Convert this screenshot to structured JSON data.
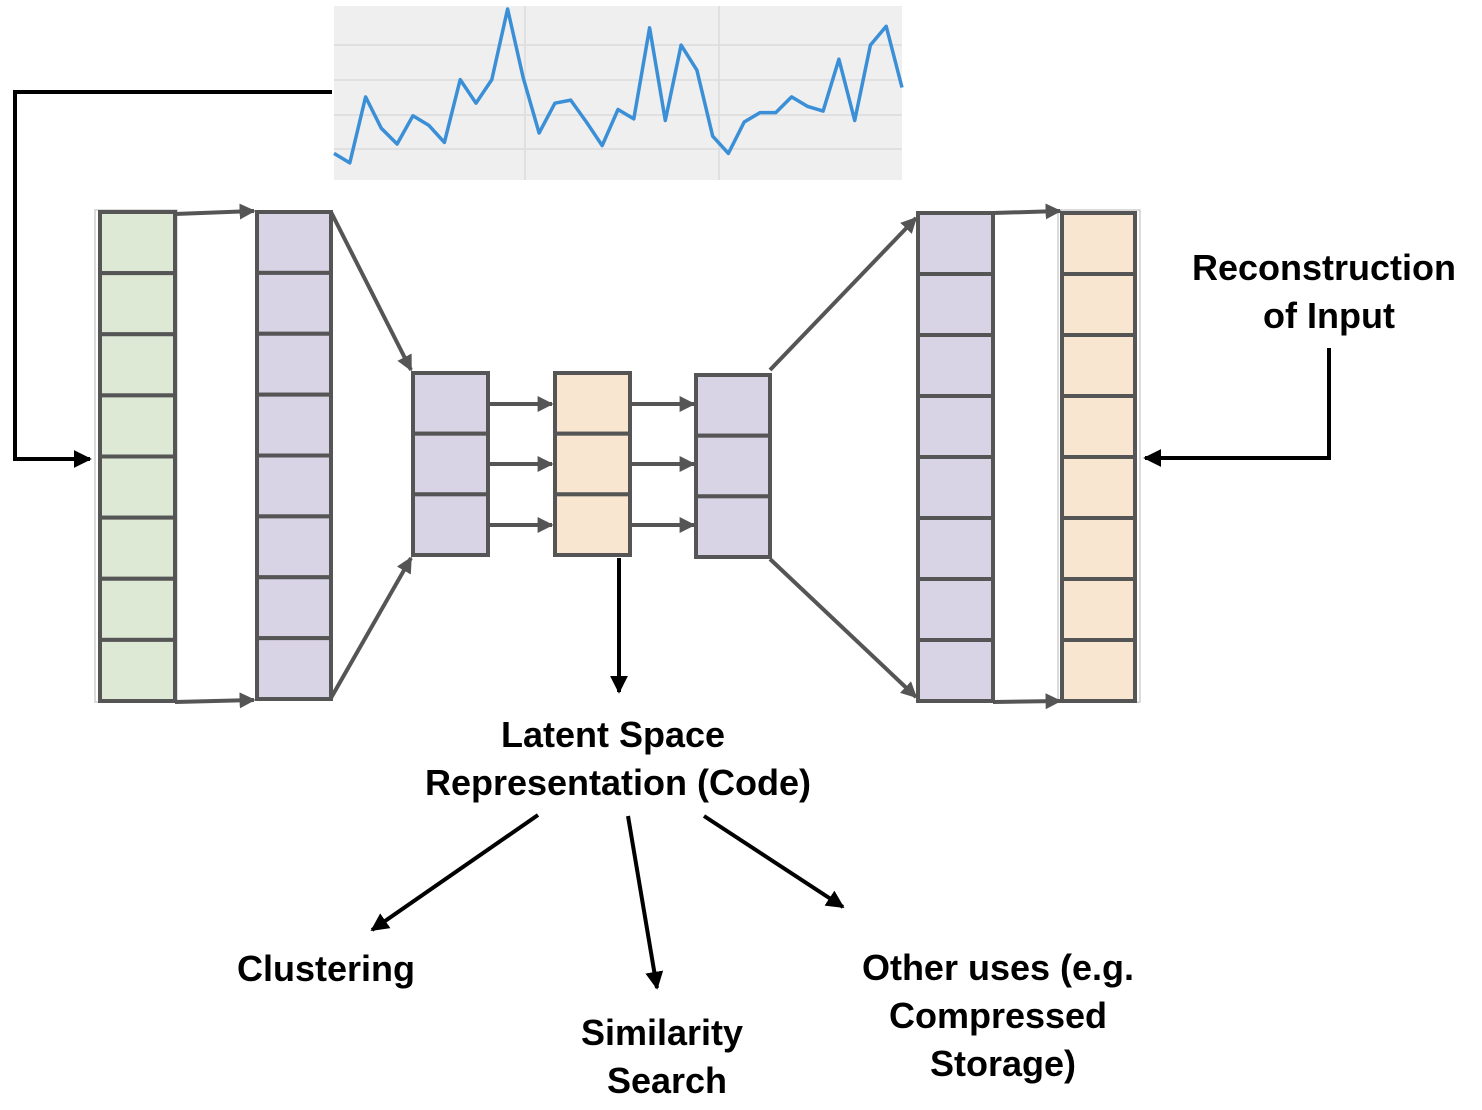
{
  "labels": {
    "reconstruction": [
      "Reconstruction",
      "of Input"
    ],
    "latent": [
      "Latent Space",
      "Representation (Code)"
    ],
    "clustering": [
      "Clustering"
    ],
    "similarity": [
      "Similarity",
      "Search"
    ],
    "other_uses": [
      "Other uses (e.g.",
      "Compressed",
      "Storage)"
    ]
  },
  "signal": {
    "values": [
      0.08,
      0.02,
      0.44,
      0.24,
      0.14,
      0.32,
      0.26,
      0.15,
      0.55,
      0.4,
      0.55,
      1.0,
      0.56,
      0.21,
      0.4,
      0.42,
      0.28,
      0.13,
      0.36,
      0.3,
      0.88,
      0.29,
      0.77,
      0.61,
      0.19,
      0.08,
      0.28,
      0.34,
      0.34,
      0.44,
      0.38,
      0.35,
      0.68,
      0.29,
      0.77,
      0.89,
      0.5
    ]
  },
  "layers": [
    {
      "name": "input-layer",
      "cells": 8,
      "fill": "#dde9d5"
    },
    {
      "name": "encoder-hidden-layer",
      "cells": 8,
      "fill": "#d9d3e6"
    },
    {
      "name": "encoder-bottleneck-layer",
      "cells": 3,
      "fill": "#d9d3e6"
    },
    {
      "name": "code-layer",
      "cells": 3,
      "fill": "#f8e6d0"
    },
    {
      "name": "decoder-bottleneck-layer",
      "cells": 3,
      "fill": "#d9d3e6"
    },
    {
      "name": "decoder-hidden-layer",
      "cells": 8,
      "fill": "#d9d3e6"
    },
    {
      "name": "output-layer",
      "cells": 8,
      "fill": "#f8e6d0"
    }
  ]
}
